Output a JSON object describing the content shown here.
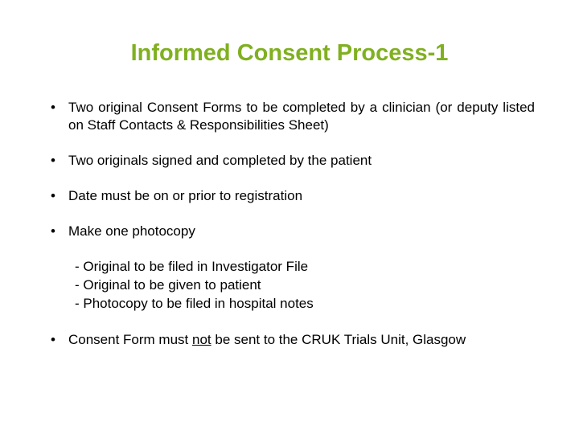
{
  "slide": {
    "title": "Informed Consent Process-1",
    "title_color": "#80b020",
    "title_fontsize": 29,
    "body_fontsize": 17,
    "text_color": "#000000",
    "background_color": "#ffffff",
    "bullets": [
      {
        "text": "Two original Consent Forms to be completed by a clinician (or deputy listed on Staff Contacts & Responsibilities Sheet)",
        "justify": true
      },
      {
        "text": "Two originals signed and completed by the patient",
        "justify": false
      },
      {
        "text": "Date must be on or prior to registration",
        "justify": false
      },
      {
        "text": "Make one photocopy",
        "justify": false
      }
    ],
    "sub_bullets": [
      "- Original to be filed in Investigator File",
      "- Original to be given to patient",
      "- Photocopy to be filed in hospital notes"
    ],
    "final_bullet_pre": "Consent Form must ",
    "final_bullet_underline": "not",
    "final_bullet_post": " be sent to the CRUK Trials Unit, Glasgow"
  }
}
